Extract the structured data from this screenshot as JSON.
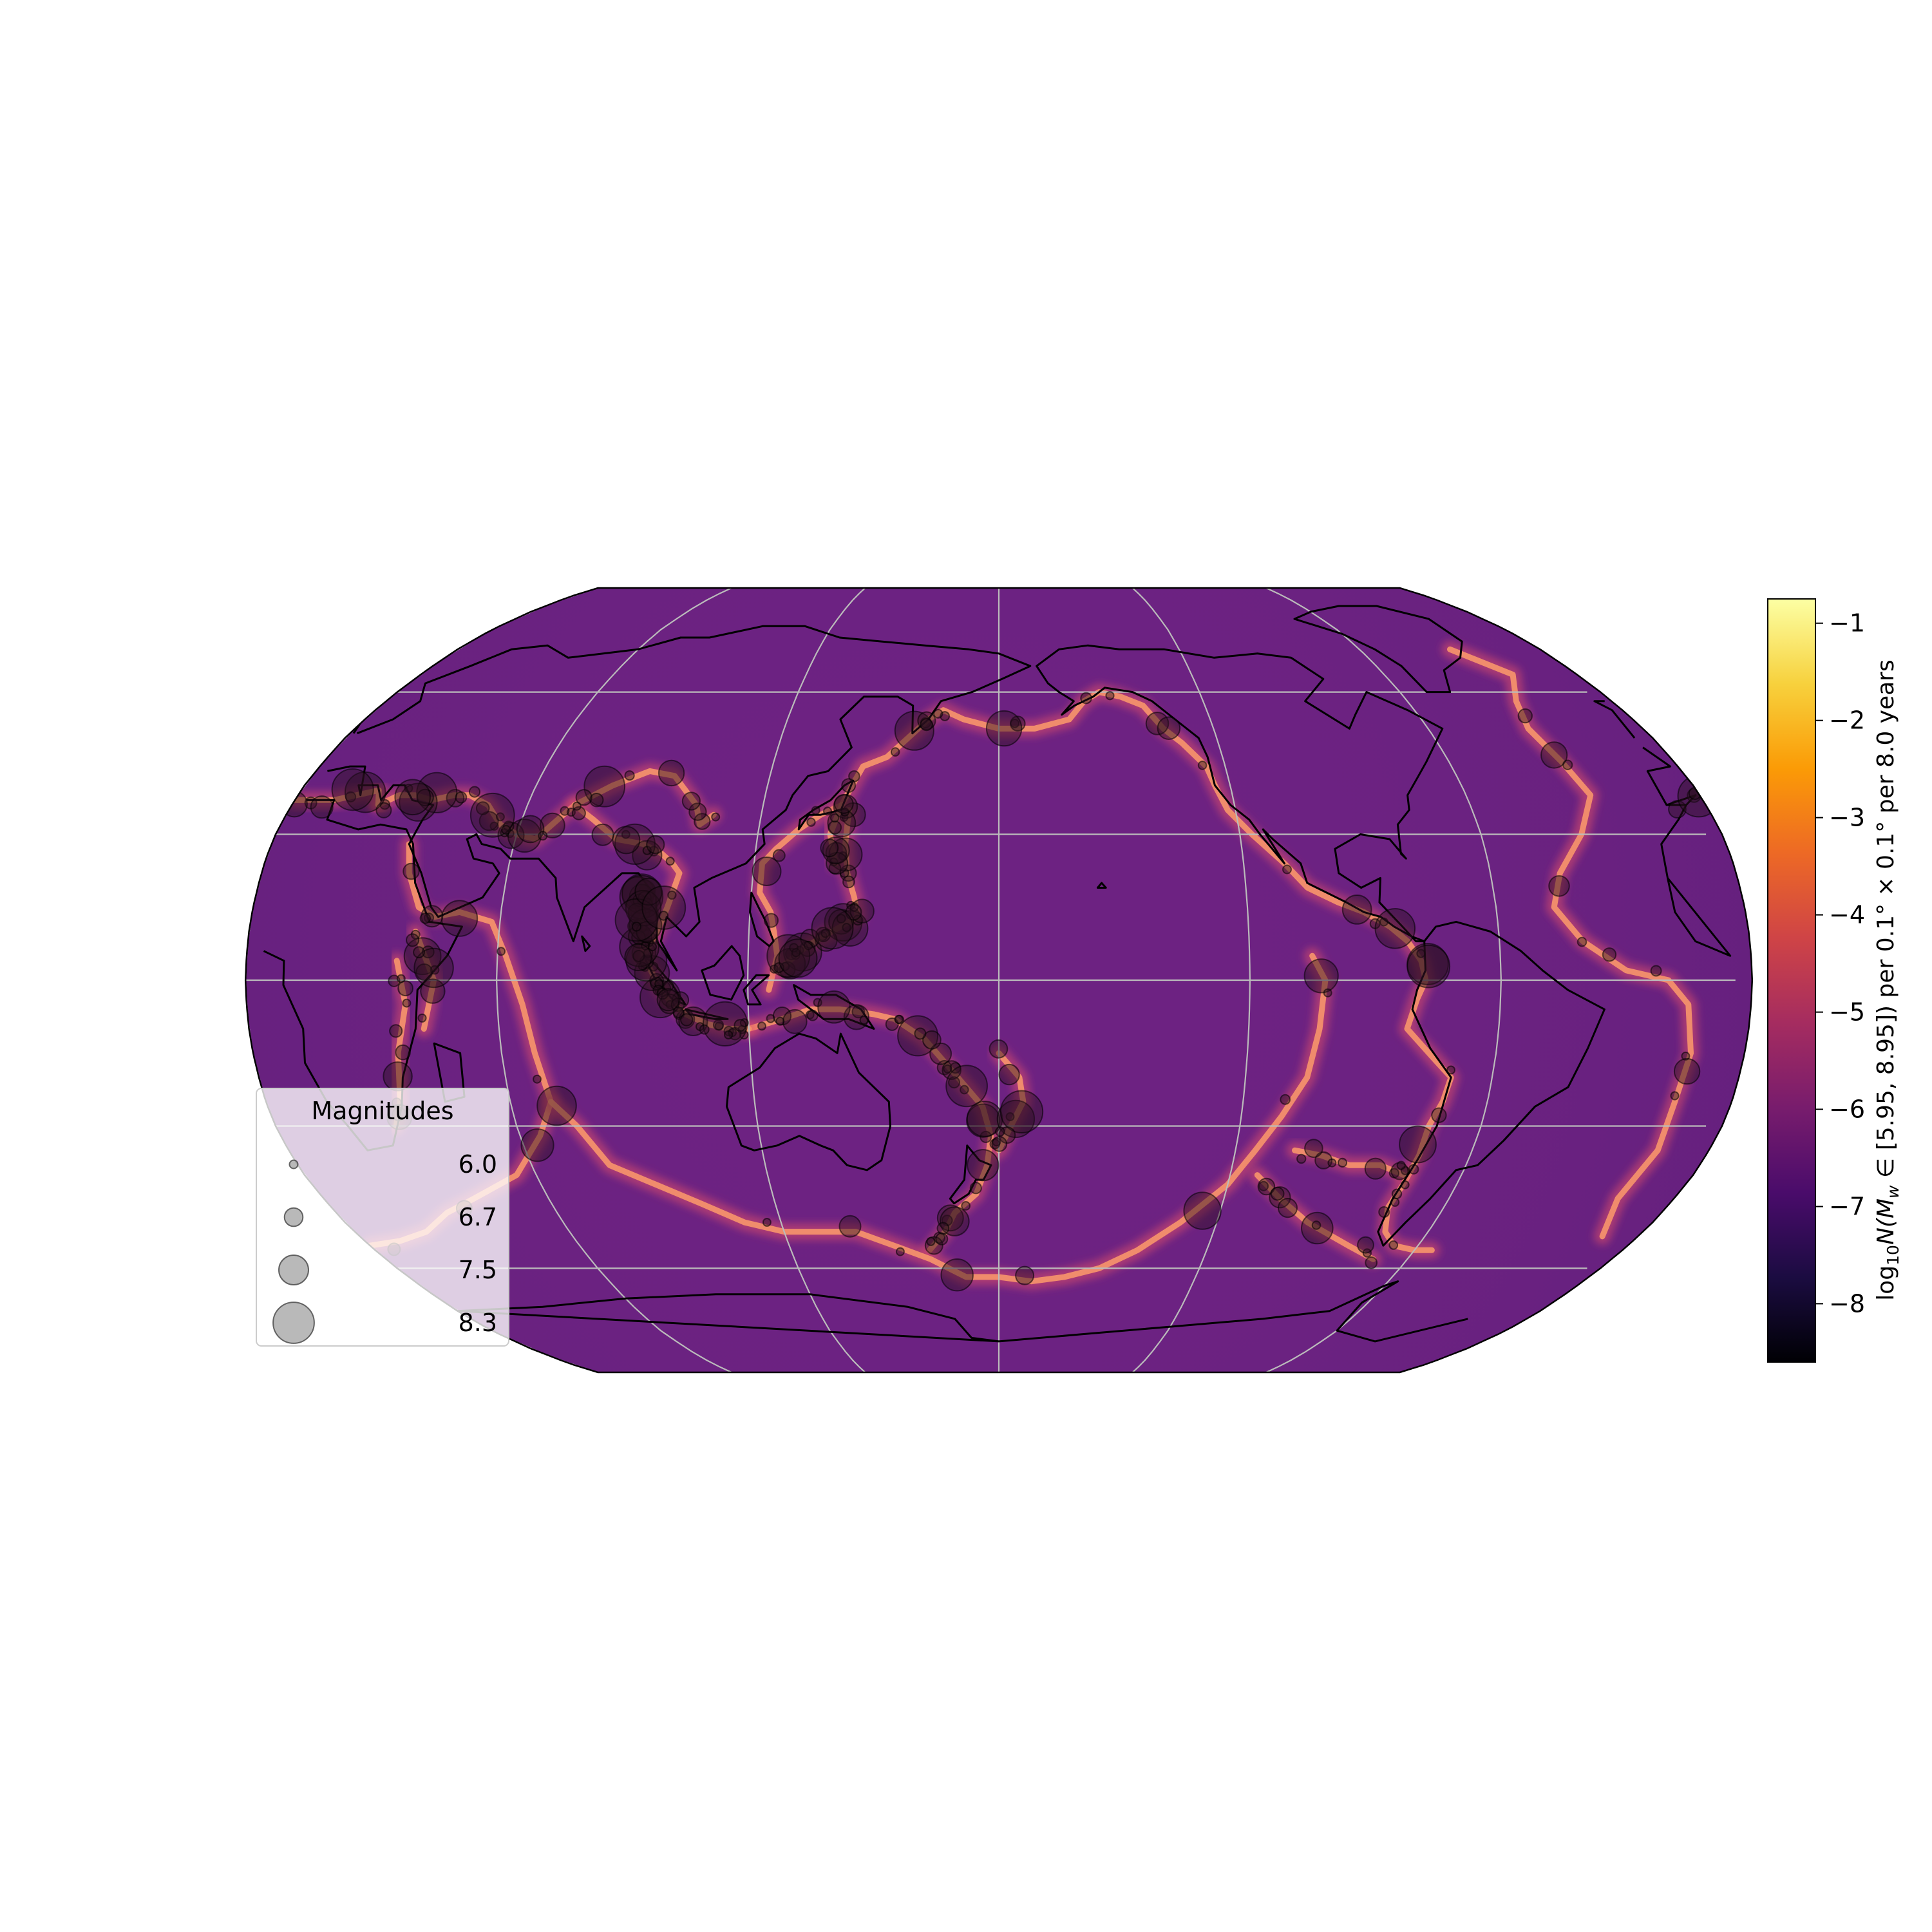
{
  "figure": {
    "type": "seismicity-rate-map",
    "projection": "Robinson",
    "central_longitude": 180,
    "graticule": {
      "lon_step": 60,
      "lat_step": 30
    },
    "background_color": "#6d2282"
  },
  "colorbar": {
    "label_prefix": "log",
    "label_sub": "10",
    "label_rest": "N(M",
    "label_sub2": "w",
    "label_tail": " ∈ [5.95, 8.95]) per 0.1° × 0.1°  per 8.0 years",
    "colormap": "magma",
    "vmin": -8.6,
    "vmax": -0.75,
    "ticks": [
      -1,
      -2,
      -3,
      -4,
      -5,
      -6,
      -7,
      -8
    ],
    "tick_labels": [
      "−1",
      "−2",
      "−3",
      "−4",
      "−5",
      "−6",
      "−7",
      "−8"
    ],
    "colors": [
      "#000004",
      "#1b0c41",
      "#4a0c6b",
      "#781c6d",
      "#a52c60",
      "#cf4446",
      "#ed6925",
      "#fb9b06",
      "#f7d13d",
      "#fcffa4"
    ]
  },
  "legend": {
    "title": "Magnitudes",
    "items": [
      {
        "label": "6.0",
        "magnitude": 6.0
      },
      {
        "label": "6.7",
        "magnitude": 6.7
      },
      {
        "label": "7.5",
        "magnitude": 7.5
      },
      {
        "label": "8.3",
        "magnitude": 8.3
      }
    ],
    "marker_color": "#808080"
  },
  "chart_data": {
    "type": "heatmap",
    "title": "",
    "xlabel": "",
    "ylabel": "",
    "zlabel": "log10 N(Mw ∈ [5.95, 8.95]) per 0.1° × 0.1°  per 8.0 years",
    "zlim": [
      -8.6,
      -0.75
    ],
    "plate_boundary_rate_range": [
      -4.5,
      -2.5
    ],
    "background_rate": -5.5,
    "event_magnitude_range": [
      5.95,
      8.95
    ]
  }
}
